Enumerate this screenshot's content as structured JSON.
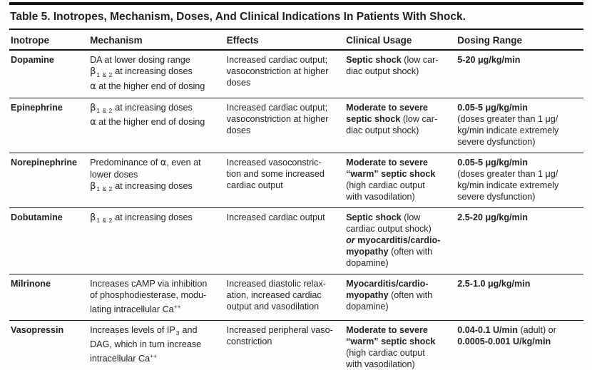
{
  "page": {
    "title": "Table 5. Inotropes, Mechanism, Doses, And Clinical Indications In Patients With Shock."
  },
  "colors": {
    "background": "#fdfdfd",
    "text": "#231f20",
    "rule": "#121212"
  },
  "table": {
    "columns": [
      "Inotrope",
      "Mechanism",
      "Effects",
      "Clinical Usage",
      "Dosing Range"
    ],
    "rows": [
      {
        "inotrope": "Dopamine",
        "mechanism": [
          {
            "t": "DA at lower dosing range"
          },
          {
            "br": true
          },
          {
            "t": "β",
            "s": "g"
          },
          {
            "t": "1 & 2",
            "s": "sub"
          },
          {
            "t": " at increasing doses"
          },
          {
            "br": true
          },
          {
            "t": "α",
            "s": "g"
          },
          {
            "t": " at the higher end of dosing"
          }
        ],
        "effects": [
          {
            "t": "Increased cardiac output;"
          },
          {
            "br": true
          },
          {
            "t": "vasoconstriction at higher"
          },
          {
            "br": true
          },
          {
            "t": "doses"
          }
        ],
        "clinical_usage": [
          {
            "t": "Septic shock",
            "s": "b"
          },
          {
            "t": " (low car-"
          },
          {
            "br": true
          },
          {
            "t": "diac output shock)"
          }
        ],
        "dosing_range": [
          {
            "t": "5-20 μg/kg/min",
            "s": "b"
          }
        ]
      },
      {
        "inotrope": "Epinephrine",
        "mechanism": [
          {
            "t": "β",
            "s": "g"
          },
          {
            "t": "1 & 2",
            "s": "sub"
          },
          {
            "t": " at increasing doses"
          },
          {
            "br": true
          },
          {
            "t": "α",
            "s": "g"
          },
          {
            "t": " at the higher end of dosing"
          }
        ],
        "effects": [
          {
            "t": "Increased cardiac output;"
          },
          {
            "br": true
          },
          {
            "t": "vasoconstriction at higher"
          },
          {
            "br": true
          },
          {
            "t": "doses"
          }
        ],
        "clinical_usage": [
          {
            "t": "Moderate to severe",
            "s": "b"
          },
          {
            "br": true
          },
          {
            "t": "septic shock",
            "s": "b"
          },
          {
            "t": " (low car-"
          },
          {
            "br": true
          },
          {
            "t": "diac output shock)"
          }
        ],
        "dosing_range": [
          {
            "t": "0.05-5 μg/kg/min",
            "s": "b"
          },
          {
            "br": true
          },
          {
            "t": "(doses greater than 1 μg/"
          },
          {
            "br": true
          },
          {
            "t": "kg/min indicate extremely"
          },
          {
            "br": true
          },
          {
            "t": "severe dysfunction)"
          }
        ]
      },
      {
        "inotrope": "Norepinephrine",
        "mechanism": [
          {
            "t": "Predominance of "
          },
          {
            "t": "α",
            "s": "g"
          },
          {
            "t": ", even at"
          },
          {
            "br": true
          },
          {
            "t": "lower doses"
          },
          {
            "br": true
          },
          {
            "t": "β",
            "s": "g"
          },
          {
            "t": "1 & 2",
            "s": "sub"
          },
          {
            "t": " at increasing doses"
          }
        ],
        "effects": [
          {
            "t": "Increased vasoconstric-"
          },
          {
            "br": true
          },
          {
            "t": "tion and some increased"
          },
          {
            "br": true
          },
          {
            "t": "cardiac output"
          }
        ],
        "clinical_usage": [
          {
            "t": "Moderate to severe",
            "s": "b"
          },
          {
            "br": true
          },
          {
            "t": "“warm” septic shock",
            "s": "b"
          },
          {
            "br": true
          },
          {
            "t": "(high cardiac output"
          },
          {
            "br": true
          },
          {
            "t": "with vasodilation)"
          }
        ],
        "dosing_range": [
          {
            "t": "0.05-5 μg/kg/min",
            "s": "b"
          },
          {
            "br": true
          },
          {
            "t": "(doses greater than 1 μg/"
          },
          {
            "br": true
          },
          {
            "t": "kg/min indicate extremely"
          },
          {
            "br": true
          },
          {
            "t": "severe dysfunction)"
          }
        ]
      },
      {
        "inotrope": "Dobutamine",
        "mechanism": [
          {
            "t": "β",
            "s": "g"
          },
          {
            "t": "1 & 2",
            "s": "sub"
          },
          {
            "t": " at increasing doses"
          }
        ],
        "effects": [
          {
            "t": "Increased cardiac output"
          }
        ],
        "clinical_usage": [
          {
            "t": "Septic shock",
            "s": "b"
          },
          {
            "t": " (low"
          },
          {
            "br": true
          },
          {
            "t": "cardiac output shock)"
          },
          {
            "br": true
          },
          {
            "t": "or",
            "s": "bi"
          },
          {
            "t": " myocarditis/cardio-",
            "s": "b"
          },
          {
            "br": true
          },
          {
            "t": "myopathy",
            "s": "b"
          },
          {
            "t": " (often with"
          },
          {
            "br": true
          },
          {
            "t": "dopamine)"
          }
        ],
        "dosing_range": [
          {
            "t": "2.5-20 μg/kg/min",
            "s": "b"
          }
        ]
      },
      {
        "inotrope": "Milrinone",
        "mechanism": [
          {
            "t": "Increases cAMP via inhibition"
          },
          {
            "br": true
          },
          {
            "t": "of phosphodiesterase, modu-"
          },
          {
            "br": true
          },
          {
            "t": "lating intracellular Ca"
          },
          {
            "t": "++",
            "s": "sup"
          }
        ],
        "effects": [
          {
            "t": "Increased diastolic relax-"
          },
          {
            "br": true
          },
          {
            "t": "ation, increased cardiac"
          },
          {
            "br": true
          },
          {
            "t": "output and vasodilation"
          }
        ],
        "clinical_usage": [
          {
            "t": "Myocarditis/cardio-",
            "s": "b"
          },
          {
            "br": true
          },
          {
            "t": "myopathy",
            "s": "b"
          },
          {
            "t": " (often with"
          },
          {
            "br": true
          },
          {
            "t": "dopamine)"
          }
        ],
        "dosing_range": [
          {
            "t": "2.5-1.0 μg/kg/min",
            "s": "b"
          }
        ]
      },
      {
        "inotrope": "Vasopressin",
        "mechanism": [
          {
            "t": "Increases levels of IP"
          },
          {
            "t": "3",
            "s": "sub"
          },
          {
            "t": " and"
          },
          {
            "br": true
          },
          {
            "t": "DAG, which in turn increase"
          },
          {
            "br": true
          },
          {
            "t": "intracellular Ca"
          },
          {
            "t": "++",
            "s": "sup"
          }
        ],
        "effects": [
          {
            "t": "Increased peripheral vaso-"
          },
          {
            "br": true
          },
          {
            "t": "constriction"
          }
        ],
        "clinical_usage": [
          {
            "t": "Moderate to severe",
            "s": "b"
          },
          {
            "br": true
          },
          {
            "t": "“warm” septic shock",
            "s": "b"
          },
          {
            "br": true
          },
          {
            "t": "(high cardiac output"
          },
          {
            "br": true
          },
          {
            "t": "with vasodilation)"
          }
        ],
        "dosing_range": [
          {
            "t": "0.04-0.1 U/min",
            "s": "b"
          },
          {
            "t": " (adult) or"
          },
          {
            "br": true
          },
          {
            "t": "0.0005-0.001 U/kg/min",
            "s": "b"
          }
        ]
      }
    ]
  }
}
